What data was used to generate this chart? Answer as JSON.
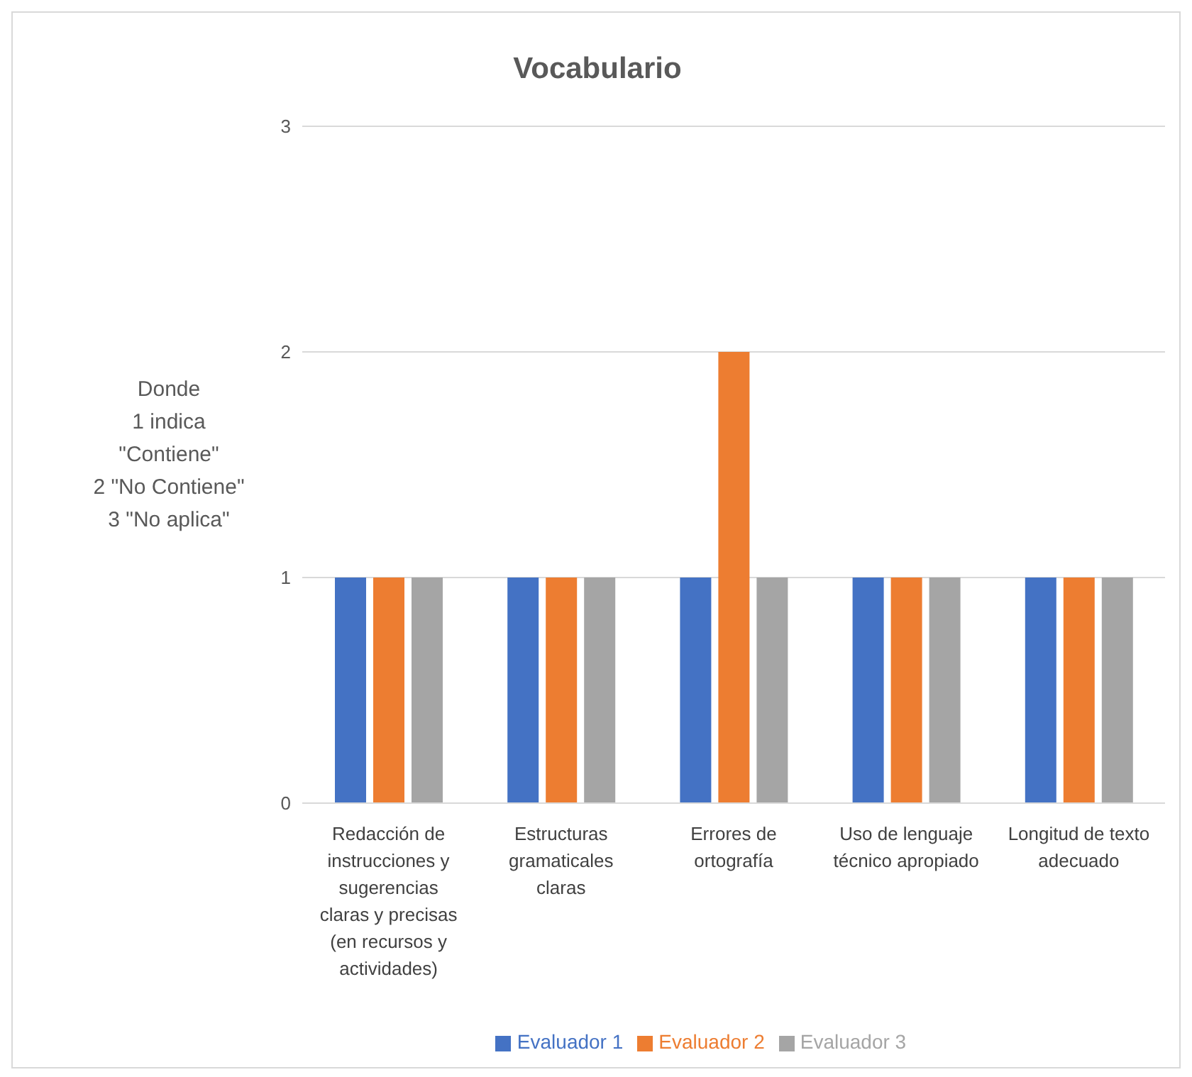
{
  "chart_data": {
    "type": "bar",
    "title": "Vocabulario",
    "ylabel": "Donde\n1 indica\n\"Contiene\"\n2 \"No Contiene\"\n3 \"No aplica\"",
    "categories": [
      "Redacción de instrucciones y sugerencias claras y precisas (en recursos y actividades)",
      "Estructuras gramaticales claras",
      "Errores de ortografía",
      "Uso de lenguaje técnico apropiado",
      "Longitud de texto adecuado"
    ],
    "series": [
      {
        "name": "Evaluador 1",
        "color": "#4472c4",
        "values": [
          1,
          1,
          1,
          1,
          1
        ]
      },
      {
        "name": "Evaluador 2",
        "color": "#ed7d31",
        "values": [
          1,
          1,
          2,
          1,
          1
        ]
      },
      {
        "name": "Evaluador 3",
        "color": "#a5a5a5",
        "values": [
          1,
          1,
          1,
          1,
          1
        ]
      }
    ],
    "ylim": [
      0,
      3
    ],
    "yticks": [
      0,
      1,
      2,
      3
    ],
    "grid": "y",
    "legend": "bottom"
  }
}
